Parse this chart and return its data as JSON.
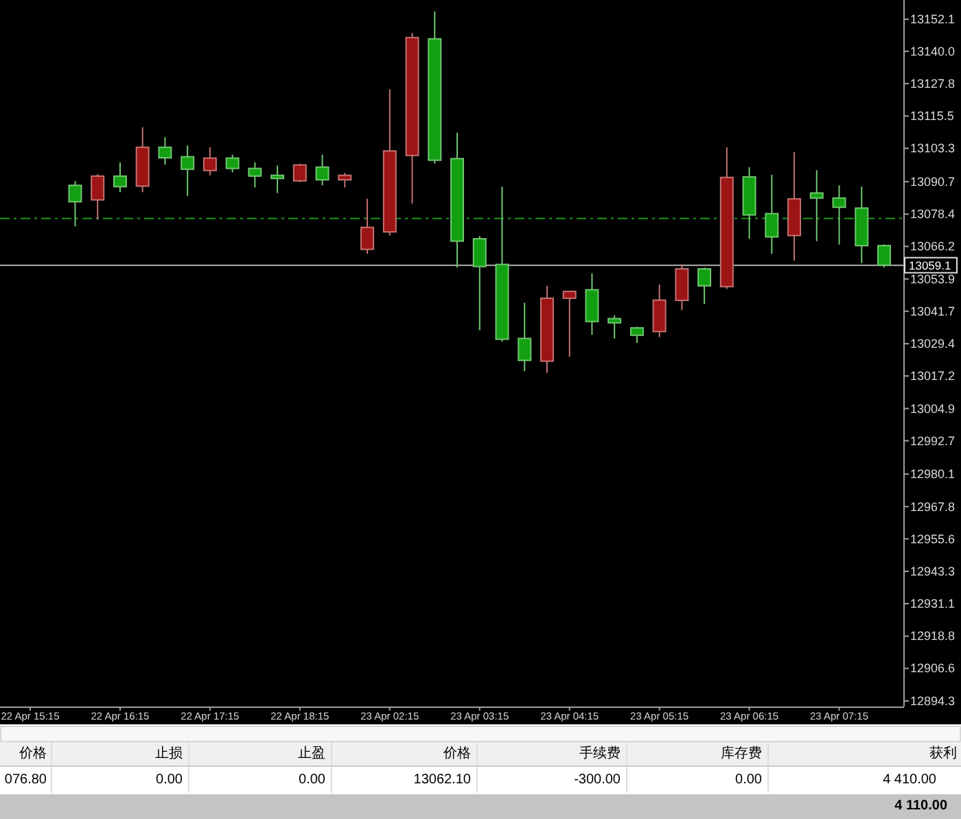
{
  "chart_data": {
    "type": "candlestick",
    "categories": [
      "22 Apr 15:15",
      null,
      null,
      null,
      "22 Apr 16:15",
      null,
      null,
      null,
      "22 Apr 17:15",
      null,
      null,
      null,
      "22 Apr 18:15",
      null,
      null,
      null,
      "23 Apr 02:15",
      null,
      null,
      null,
      "23 Apr 03:15",
      null,
      null,
      null,
      "23 Apr 04:15",
      null,
      null,
      null,
      "23 Apr 05:15",
      null,
      null,
      null,
      "23 Apr 06:15",
      null,
      null,
      null,
      "23 Apr 07:15",
      null,
      null
    ],
    "ohlc": [
      null,
      null,
      [
        13089.3,
        13090.9,
        13073.8,
        13083.1
      ],
      [
        13083.8,
        13093.5,
        13076.4,
        13092.8
      ],
      [
        13092.8,
        13098.0,
        13086.7,
        13088.8
      ],
      [
        13089.0,
        13111.3,
        13086.7,
        13103.7
      ],
      [
        13103.7,
        13107.5,
        13097.1,
        13099.7
      ],
      [
        13100.1,
        13104.4,
        13085.3,
        13095.4
      ],
      [
        13094.9,
        13103.7,
        13093.1,
        13099.6
      ],
      [
        13099.6,
        13100.9,
        13094.2,
        13095.7
      ],
      [
        13095.7,
        13098.0,
        13088.5,
        13092.8
      ],
      [
        13093.1,
        13096.8,
        13086.4,
        13091.9
      ],
      [
        13091.0,
        13097.5,
        13090.5,
        13097.0
      ],
      [
        13096.2,
        13100.9,
        13089.3,
        13091.4
      ],
      [
        13091.4,
        13094.0,
        13088.5,
        13093.1
      ],
      [
        13065.1,
        13084.2,
        13063.4,
        13073.4
      ],
      [
        13071.7,
        13125.6,
        13070.3,
        13102.3
      ],
      [
        13100.6,
        13146.9,
        13082.4,
        13145.2
      ],
      [
        13144.7,
        13155.1,
        13097.5,
        13098.8
      ],
      [
        13099.4,
        13109.2,
        13058.2,
        13068.2
      ],
      [
        13069.1,
        13070.1,
        13034.5,
        13058.6
      ],
      [
        13059.4,
        13088.8,
        13030.2,
        13031.1
      ],
      [
        13031.4,
        13044.9,
        13019.0,
        13023.1
      ],
      [
        13022.8,
        13051.3,
        13018.4,
        13046.6
      ],
      [
        13046.6,
        13049.2,
        13024.5,
        13049.2
      ],
      [
        13049.8,
        13056.0,
        13032.8,
        13037.8
      ],
      [
        13038.9,
        13040.1,
        13031.4,
        13037.3
      ],
      [
        13035.4,
        13035.8,
        13029.7,
        13032.6
      ],
      [
        13034.0,
        13051.8,
        13031.9,
        13045.9
      ],
      [
        13045.8,
        13059.4,
        13042.1,
        13057.7
      ],
      [
        13057.7,
        13058.2,
        13044.4,
        13051.3
      ],
      [
        13051.0,
        13103.7,
        13050.1,
        13092.3
      ],
      [
        13092.5,
        13096.2,
        13069.1,
        13078.1
      ],
      [
        13078.6,
        13093.3,
        13063.4,
        13069.8
      ],
      [
        13070.3,
        13101.9,
        13060.8,
        13084.2
      ],
      [
        13086.4,
        13095.0,
        13068.2,
        13084.5
      ],
      [
        13084.5,
        13089.3,
        13066.9,
        13081.0
      ],
      [
        13080.7,
        13088.8,
        13059.9,
        13066.5
      ],
      [
        13066.5,
        13067.0,
        13058.2,
        13059.1
      ]
    ],
    "colors": [
      null,
      null,
      "#12a012",
      "#9c1414",
      "#12a012",
      "#9c1414",
      "#12a012",
      "#12a012",
      "#9c1414",
      "#12a012",
      "#12a012",
      "#12a012",
      "#9c1414",
      "#12a012",
      "#9c1414",
      "#9c1414",
      "#9c1414",
      "#9c1414",
      "#12a012",
      "#12a012",
      "#12a012",
      "#12a012",
      "#12a012",
      "#9c1414",
      "#9c1414",
      "#12a012",
      "#12a012",
      "#12a012",
      "#9c1414",
      "#9c1414",
      "#12a012",
      "#9c1414",
      "#12a012",
      "#12a012",
      "#9c1414",
      "#12a012",
      "#12a012",
      "#12a012",
      "#12a012"
    ],
    "ylim": [
      12892.2,
      13159.4
    ],
    "yticks": [
      12894.3,
      12906.6,
      12918.8,
      12931.1,
      12943.3,
      12955.6,
      12967.8,
      12980.1,
      12992.7,
      13004.9,
      13017.2,
      13029.4,
      13041.7,
      13053.9,
      13066.2,
      13078.4,
      13090.7,
      13103.3,
      13115.5,
      13127.8,
      {
        "value": 13140,
        "label": "13140.0"
      },
      13152.1
    ],
    "ref_lines": [
      {
        "axis": "y",
        "value": 13059.1,
        "label": "13059.1",
        "color": "#b0b0b0"
      },
      {
        "axis": "y",
        "value": 13076.8,
        "color": "#1c9a1c",
        "line_style": "dashed"
      }
    ],
    "annotations": [
      "价格",
      "止损",
      "止盈",
      "价格",
      "手续费",
      "库存费",
      "获利",
      "076.80",
      "0.00",
      "0.00",
      "13062.10",
      "-300.00",
      "0.00",
      "4 410.00",
      "4 110.00"
    ]
  }
}
